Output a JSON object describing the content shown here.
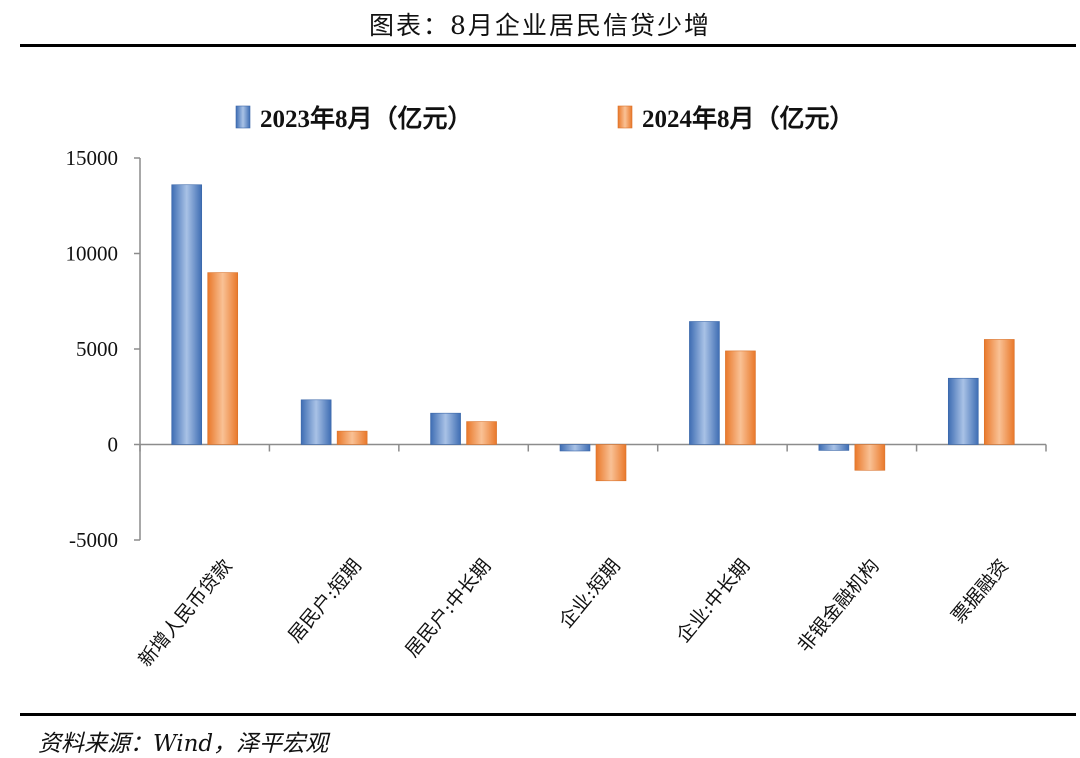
{
  "header": {
    "title": "图表：8月企业居民信贷少增"
  },
  "footer": {
    "source": "资料来源：Wind，泽平宏观"
  },
  "chart_data": {
    "type": "bar",
    "title": "",
    "xlabel": "",
    "ylabel": "",
    "ylim": [
      -5000,
      15000
    ],
    "yticks": [
      -5000,
      0,
      5000,
      10000,
      15000
    ],
    "ytick_labels": [
      "-5000",
      "0",
      "5000",
      "10000",
      "15000"
    ],
    "grid": false,
    "legend_position": "top",
    "categories": [
      "新增人民币贷款",
      "居民户:短期",
      "居民户:中长期",
      "企业:短期",
      "企业:中长期",
      "非银金融机构",
      "票据融资"
    ],
    "series": [
      {
        "name": "2023年8月（亿元）",
        "color": "#4a7cc0",
        "values": [
          13600,
          2340,
          1640,
          -340,
          6440,
          -310,
          3470
        ]
      },
      {
        "name": "2024年8月（亿元）",
        "color": "#ee8a3a",
        "values": [
          9000,
          700,
          1200,
          -1900,
          4900,
          -1350,
          5500
        ]
      }
    ]
  }
}
